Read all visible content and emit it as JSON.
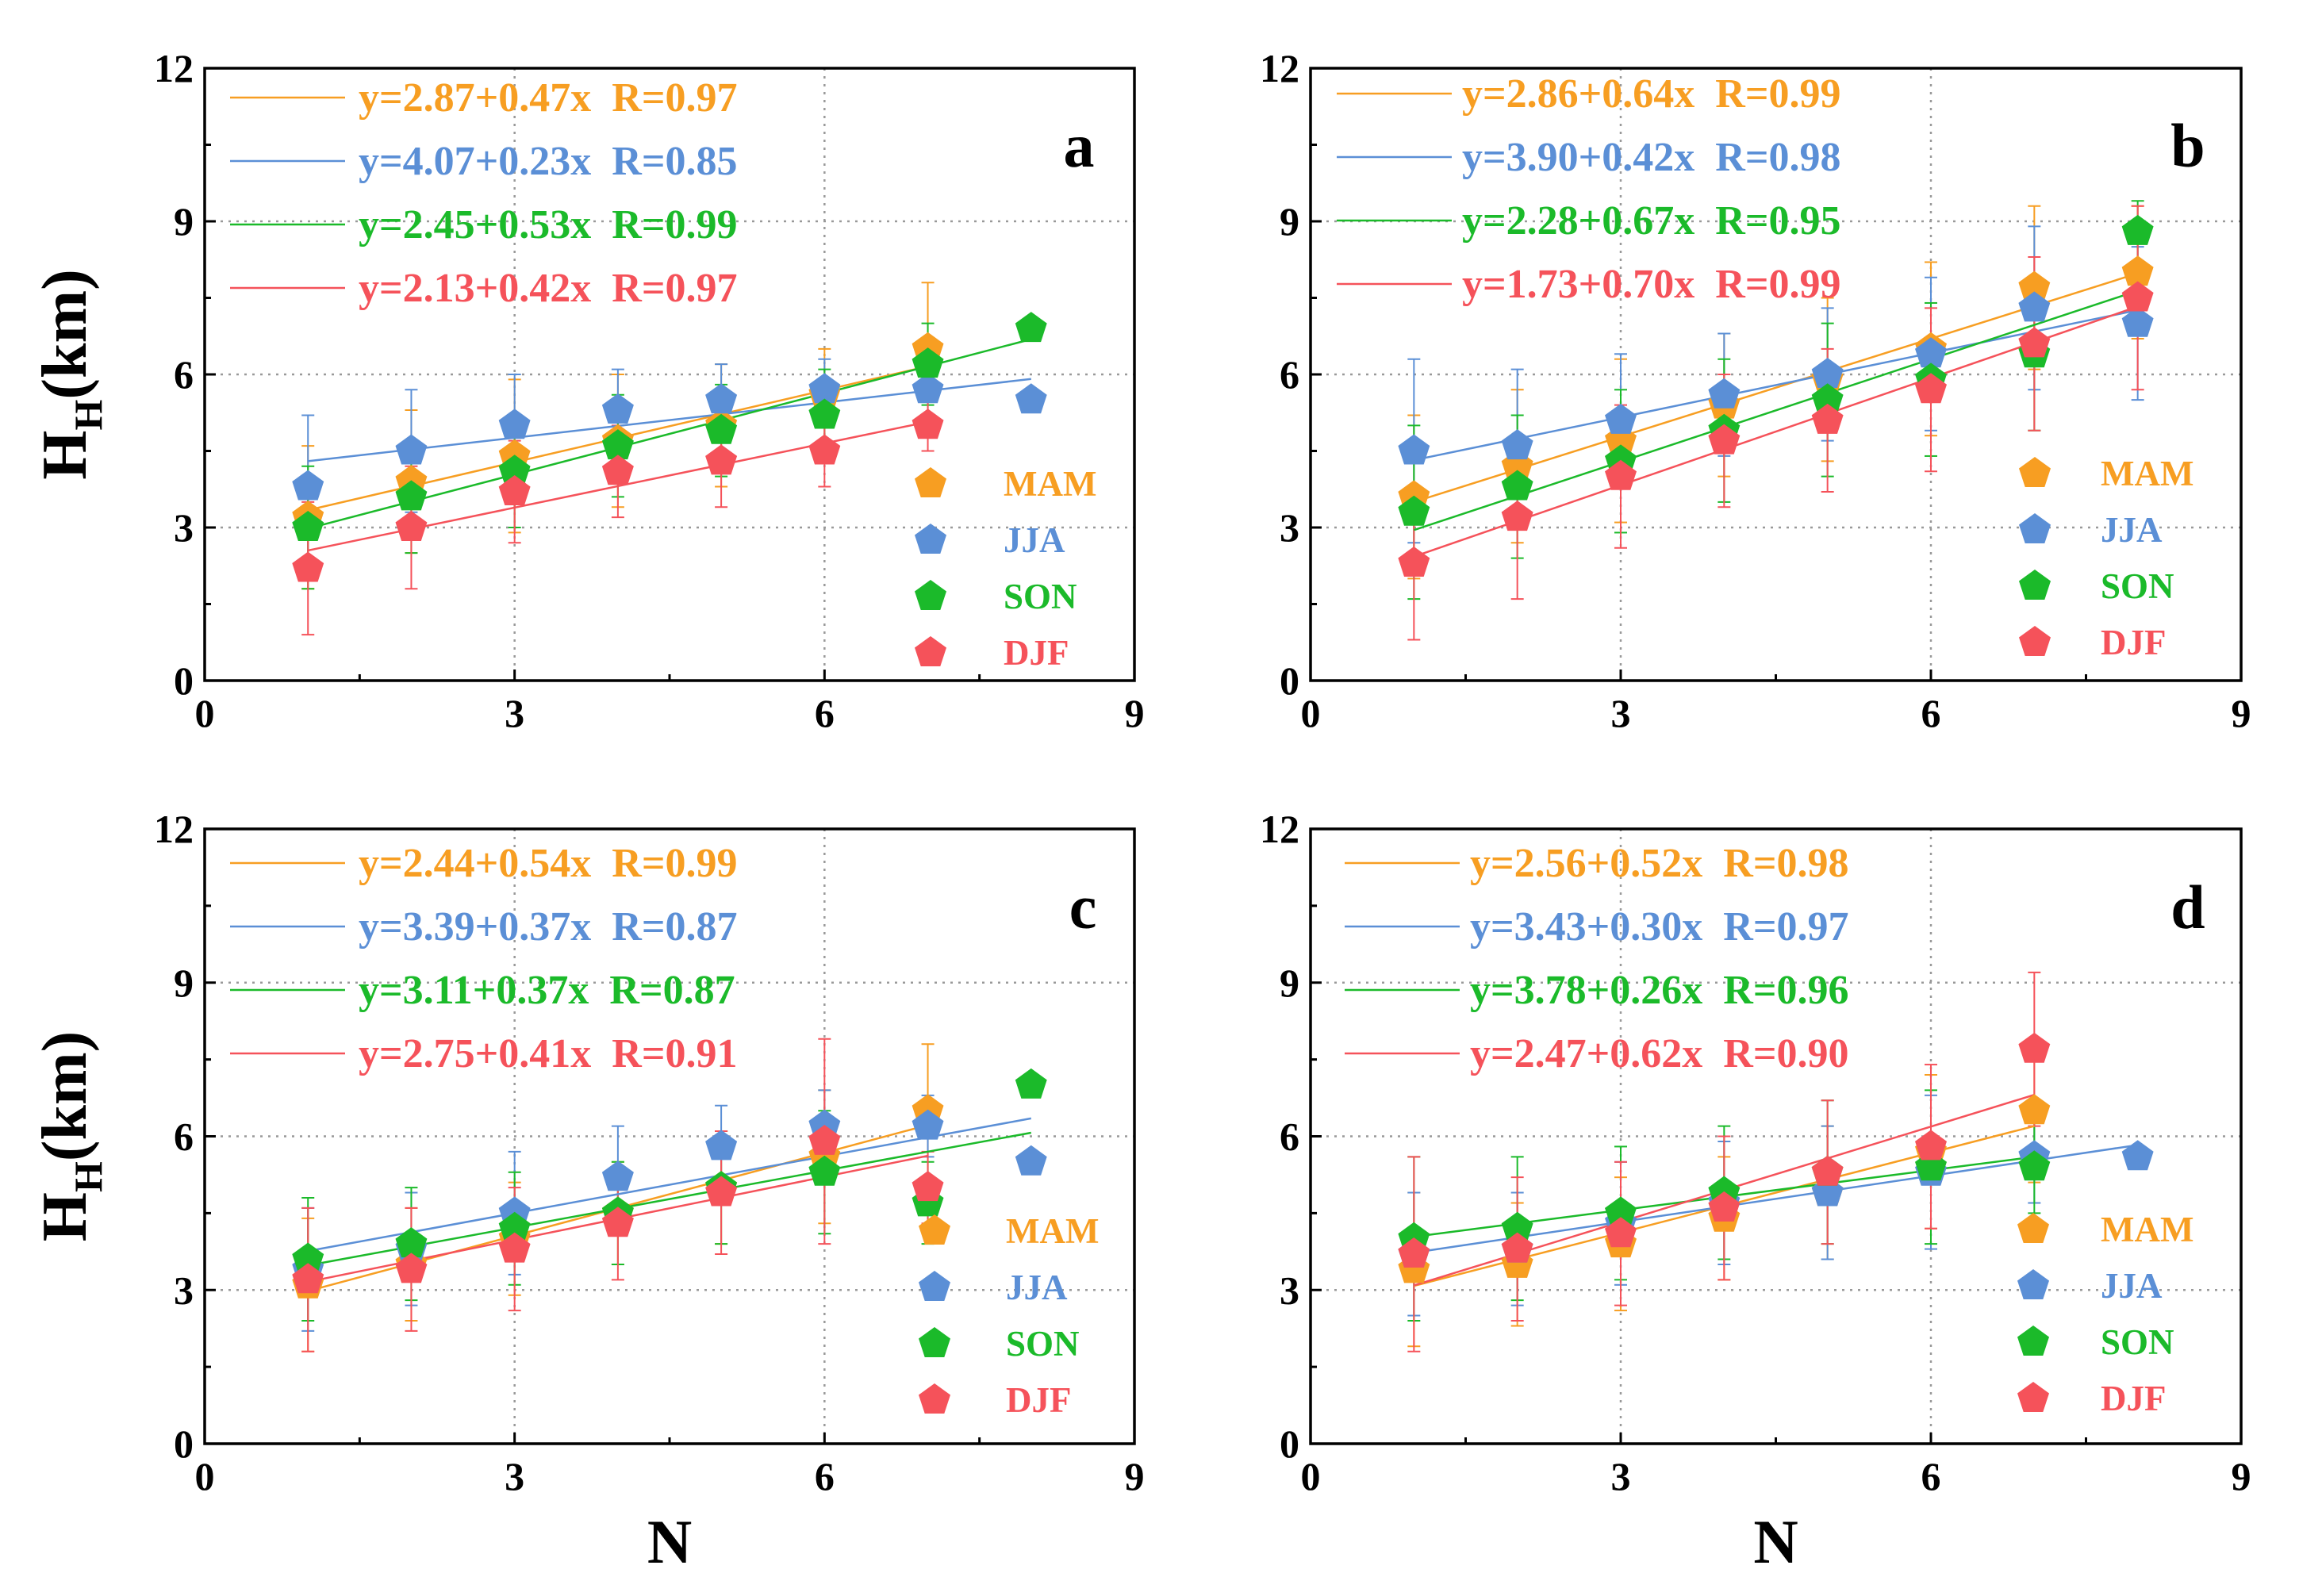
{
  "figure": {
    "xlabel": "N",
    "ylabel_main": "H",
    "ylabel_sub": "H",
    "ylabel_unit": "(km)"
  },
  "colors": {
    "MAM": "#F79E22",
    "JJA": "#5B8FD6",
    "SON": "#1BBA2A",
    "DJF": "#F5525A"
  },
  "chart_data": [
    {
      "type": "scatter",
      "panel": "a",
      "xlim": [
        0,
        9
      ],
      "ylim": [
        0,
        12
      ],
      "xticks": [
        0,
        3,
        6,
        9
      ],
      "yticks": [
        0,
        3,
        6,
        9,
        12
      ],
      "xlabel": "",
      "ylabel": "HH(km)",
      "grid": "dotted",
      "equations": [
        {
          "season": "MAM",
          "text": "y=2.87+0.47x  R=0.97"
        },
        {
          "season": "JJA",
          "text": "y=4.07+0.23x  R=0.85"
        },
        {
          "season": "SON",
          "text": "y=2.45+0.53x  R=0.99"
        },
        {
          "season": "DJF",
          "text": "y=2.13+0.42x  R=0.97"
        }
      ],
      "series": [
        {
          "name": "MAM",
          "x": [
            1,
            2,
            3,
            4,
            5,
            6,
            7
          ],
          "y": [
            3.2,
            3.9,
            4.4,
            4.7,
            5.0,
            5.6,
            6.5
          ],
          "err": [
            1.4,
            1.4,
            1.5,
            1.3,
            1.2,
            0.9,
            1.3
          ],
          "fit": {
            "a": 2.87,
            "b": 0.47,
            "x0": 1,
            "x1": 7
          }
        },
        {
          "name": "JJA",
          "x": [
            1,
            2,
            3,
            4,
            5,
            6,
            7,
            8
          ],
          "y": [
            3.8,
            4.5,
            5.0,
            5.3,
            5.5,
            5.7,
            5.7,
            5.5
          ],
          "err": [
            1.4,
            1.2,
            1.0,
            0.8,
            0.7,
            0.6,
            0.5,
            0.1
          ],
          "fit": {
            "a": 4.07,
            "b": 0.23,
            "x0": 1,
            "x1": 8
          }
        },
        {
          "name": "SON",
          "x": [
            1,
            2,
            3,
            4,
            5,
            6,
            7,
            8
          ],
          "y": [
            3.0,
            3.6,
            4.1,
            4.6,
            4.9,
            5.2,
            6.2,
            6.9
          ],
          "err": [
            1.2,
            1.1,
            1.1,
            1.0,
            0.9,
            0.9,
            0.8,
            0.1
          ],
          "fit": {
            "a": 2.45,
            "b": 0.53,
            "x0": 1,
            "x1": 8
          }
        },
        {
          "name": "DJF",
          "x": [
            1,
            2,
            3,
            4,
            5,
            6,
            7
          ],
          "y": [
            2.2,
            3.0,
            3.7,
            4.1,
            4.3,
            4.5,
            5.0
          ],
          "err": [
            1.3,
            1.2,
            1.0,
            0.9,
            0.9,
            0.7,
            0.5
          ],
          "fit": {
            "a": 2.13,
            "b": 0.42,
            "x0": 1,
            "x1": 7
          }
        }
      ],
      "legend": [
        "MAM",
        "JJA",
        "SON",
        "DJF"
      ]
    },
    {
      "type": "scatter",
      "panel": "b",
      "xlim": [
        0,
        9
      ],
      "ylim": [
        0,
        12
      ],
      "xticks": [
        0,
        3,
        6,
        9
      ],
      "yticks": [
        0,
        3,
        6,
        9,
        12
      ],
      "xlabel": "",
      "ylabel": "",
      "grid": "dotted",
      "equations": [
        {
          "season": "MAM",
          "text": "y=2.86+0.64x  R=0.99"
        },
        {
          "season": "JJA",
          "text": "y=3.90+0.42x  R=0.98"
        },
        {
          "season": "SON",
          "text": "y=2.28+0.67x  R=0.95"
        },
        {
          "season": "DJF",
          "text": "y=1.73+0.70x  R=0.99"
        }
      ],
      "series": [
        {
          "name": "MAM",
          "x": [
            1,
            2,
            3,
            4,
            5,
            6,
            7,
            8
          ],
          "y": [
            3.6,
            4.2,
            4.7,
            5.4,
            5.9,
            6.5,
            7.7,
            8.0
          ],
          "err": [
            1.6,
            1.5,
            1.6,
            1.4,
            1.6,
            1.7,
            1.6,
            1.3
          ],
          "fit": {
            "a": 2.86,
            "b": 0.64,
            "x0": 1,
            "x1": 8
          }
        },
        {
          "name": "JJA",
          "x": [
            1,
            2,
            3,
            4,
            5,
            6,
            7,
            8
          ],
          "y": [
            4.5,
            4.6,
            5.1,
            5.6,
            6.0,
            6.4,
            7.3,
            7.0
          ],
          "err": [
            1.8,
            1.5,
            1.3,
            1.2,
            1.3,
            1.5,
            1.6,
            1.5
          ],
          "fit": {
            "a": 3.9,
            "b": 0.42,
            "x0": 1,
            "x1": 8
          }
        },
        {
          "name": "SON",
          "x": [
            1,
            2,
            3,
            4,
            5,
            6,
            7,
            8
          ],
          "y": [
            3.3,
            3.8,
            4.3,
            4.9,
            5.5,
            5.9,
            6.4,
            8.8
          ],
          "err": [
            1.7,
            1.4,
            1.4,
            1.4,
            1.5,
            1.5,
            1.5,
            0.6
          ],
          "fit": {
            "a": 2.28,
            "b": 0.67,
            "x0": 1,
            "x1": 8
          }
        },
        {
          "name": "DJF",
          "x": [
            1,
            2,
            3,
            4,
            5,
            6,
            7,
            8
          ],
          "y": [
            2.3,
            3.2,
            4.0,
            4.7,
            5.1,
            5.7,
            6.6,
            7.5
          ],
          "err": [
            1.5,
            1.6,
            1.4,
            1.3,
            1.4,
            1.6,
            1.7,
            1.8
          ],
          "fit": {
            "a": 1.73,
            "b": 0.7,
            "x0": 1,
            "x1": 8
          }
        }
      ],
      "legend": [
        "MAM",
        "JJA",
        "SON",
        "DJF"
      ]
    },
    {
      "type": "scatter",
      "panel": "c",
      "xlim": [
        0,
        9
      ],
      "ylim": [
        0,
        12
      ],
      "xticks": [
        0,
        3,
        6,
        9
      ],
      "yticks": [
        0,
        3,
        6,
        9,
        12
      ],
      "xlabel": "N",
      "ylabel": "HH(km)",
      "grid": "dotted",
      "equations": [
        {
          "season": "MAM",
          "text": "y=2.44+0.54x  R=0.99"
        },
        {
          "season": "JJA",
          "text": "y=3.39+0.37x  R=0.87"
        },
        {
          "season": "SON",
          "text": "y=3.11+0.37x  R=0.87"
        },
        {
          "season": "DJF",
          "text": "y=2.75+0.41x  R=0.91"
        }
      ],
      "series": [
        {
          "name": "MAM",
          "x": [
            1,
            2,
            3,
            4,
            5,
            6,
            7
          ],
          "y": [
            3.1,
            3.5,
            4.0,
            4.5,
            5.0,
            5.6,
            6.5
          ],
          "err": [
            1.3,
            1.1,
            1.1,
            1.0,
            1.1,
            1.3,
            1.3
          ],
          "fit": {
            "a": 2.44,
            "b": 0.54,
            "x0": 1,
            "x1": 7
          }
        },
        {
          "name": "JJA",
          "x": [
            1,
            2,
            3,
            4,
            5,
            6,
            7,
            8
          ],
          "y": [
            3.4,
            3.8,
            4.5,
            5.2,
            5.8,
            6.2,
            6.2,
            5.5
          ],
          "err": [
            1.2,
            1.1,
            1.2,
            1.0,
            0.8,
            0.7,
            0.6,
            0.1
          ],
          "fit": {
            "a": 3.39,
            "b": 0.37,
            "x0": 1,
            "x1": 8
          }
        },
        {
          "name": "SON",
          "x": [
            1,
            2,
            3,
            4,
            5,
            6,
            7,
            8
          ],
          "y": [
            3.6,
            3.9,
            4.2,
            4.5,
            5.0,
            5.3,
            4.7,
            7.0
          ],
          "err": [
            1.2,
            1.1,
            1.1,
            1.0,
            1.1,
            1.2,
            0.8,
            0.1
          ],
          "fit": {
            "a": 3.11,
            "b": 0.37,
            "x0": 1,
            "x1": 8
          }
        },
        {
          "name": "DJF",
          "x": [
            1,
            2,
            3,
            4,
            5,
            6,
            7
          ],
          "y": [
            3.2,
            3.4,
            3.8,
            4.3,
            4.9,
            5.9,
            5.0
          ],
          "err": [
            1.4,
            1.2,
            1.2,
            1.1,
            1.2,
            2.0,
            0.7
          ],
          "fit": {
            "a": 2.75,
            "b": 0.41,
            "x0": 1,
            "x1": 7
          }
        }
      ],
      "legend": [
        "MAM",
        "JJA",
        "SON",
        "DJF"
      ]
    },
    {
      "type": "scatter",
      "panel": "d",
      "xlim": [
        0,
        9
      ],
      "ylim": [
        0,
        12
      ],
      "xticks": [
        0,
        3,
        6,
        9
      ],
      "yticks": [
        0,
        3,
        6,
        9,
        12
      ],
      "xlabel": "N",
      "ylabel": "",
      "grid": "dotted",
      "equations": [
        {
          "season": "MAM",
          "text": "y=2.56+0.52x  R=0.98"
        },
        {
          "season": "JJA",
          "text": "y=3.43+0.30x  R=0.97"
        },
        {
          "season": "SON",
          "text": "y=3.78+0.26x  R=0.96"
        },
        {
          "season": "DJF",
          "text": "y=2.47+0.62x  R=0.90"
        }
      ],
      "series": [
        {
          "name": "MAM",
          "x": [
            1,
            2,
            3,
            4,
            5,
            6,
            7
          ],
          "y": [
            3.4,
            3.5,
            3.9,
            4.4,
            4.9,
            5.7,
            6.5
          ],
          "err": [
            1.5,
            1.2,
            1.3,
            1.2,
            1.3,
            1.5,
            1.4
          ],
          "fit": {
            "a": 2.56,
            "b": 0.52,
            "x0": 1,
            "x1": 7
          }
        },
        {
          "name": "JJA",
          "x": [
            1,
            2,
            3,
            4,
            5,
            6,
            7,
            8
          ],
          "y": [
            3.7,
            3.8,
            4.3,
            4.7,
            4.9,
            5.3,
            5.6,
            5.6
          ],
          "err": [
            1.2,
            1.1,
            1.2,
            1.2,
            1.3,
            1.5,
            0.9,
            0.2
          ],
          "fit": {
            "a": 3.43,
            "b": 0.3,
            "x0": 1,
            "x1": 8
          }
        },
        {
          "name": "SON",
          "x": [
            1,
            2,
            3,
            4,
            5,
            6,
            7
          ],
          "y": [
            4.0,
            4.2,
            4.5,
            4.9,
            5.3,
            5.4,
            5.4
          ],
          "err": [
            1.6,
            1.4,
            1.3,
            1.3,
            1.4,
            1.5,
            0.9
          ],
          "fit": {
            "a": 3.78,
            "b": 0.26,
            "x0": 1,
            "x1": 7
          }
        },
        {
          "name": "DJF",
          "x": [
            1,
            2,
            3,
            4,
            5,
            6,
            7
          ],
          "y": [
            3.7,
            3.8,
            4.1,
            4.6,
            5.3,
            5.8,
            7.7
          ],
          "err": [
            1.9,
            1.4,
            1.4,
            1.4,
            1.4,
            1.6,
            1.5
          ],
          "fit": {
            "a": 2.47,
            "b": 0.62,
            "x0": 1,
            "x1": 7
          }
        }
      ],
      "legend": [
        "MAM",
        "JJA",
        "SON",
        "DJF"
      ]
    }
  ]
}
